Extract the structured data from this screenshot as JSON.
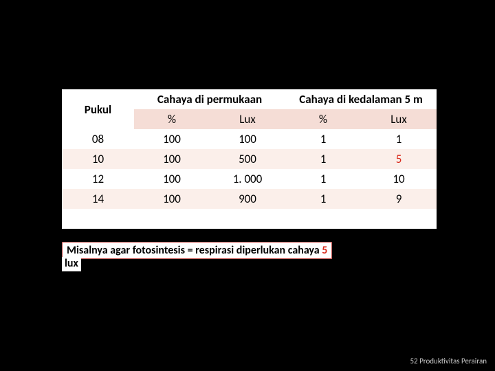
{
  "table": {
    "header": {
      "time": "Pukul",
      "surface": "Cahaya di permukaan",
      "depth": "Cahaya di kedalaman 5 m"
    },
    "subheader": {
      "pct": "%",
      "lux": "Lux"
    },
    "rows": [
      {
        "time": "08",
        "s_pct": "100",
        "s_lux": "100",
        "d_pct": "1",
        "d_lux": "1"
      },
      {
        "time": "10",
        "s_pct": "100",
        "s_lux": "500",
        "d_pct": "1",
        "d_lux": "5"
      },
      {
        "time": "12",
        "s_pct": "100",
        "s_lux": "1. 000",
        "d_pct": "1",
        "d_lux": "10"
      },
      {
        "time": "14",
        "s_pct": "100",
        "s_lux": "900",
        "d_pct": "1",
        "d_lux": "9"
      }
    ],
    "highlight_d_lux_row_index": 1,
    "colors": {
      "row_even_bg": "#ffffff",
      "row_odd_bg": "#fbefea",
      "sub_bg": "#f5ddd6",
      "border": "#c0504d",
      "accent_text": "#d92a1c",
      "page_bg": "#000000"
    },
    "fontsize_body": 17,
    "fontsize_note": 16
  },
  "note": {
    "line1_prefix": "Misalnya agar fotosintesis = respirasi diperlukan cahaya ",
    "line1_accent": "5",
    "line2": "lux"
  },
  "footer": "52 Produktivitas Perairan"
}
